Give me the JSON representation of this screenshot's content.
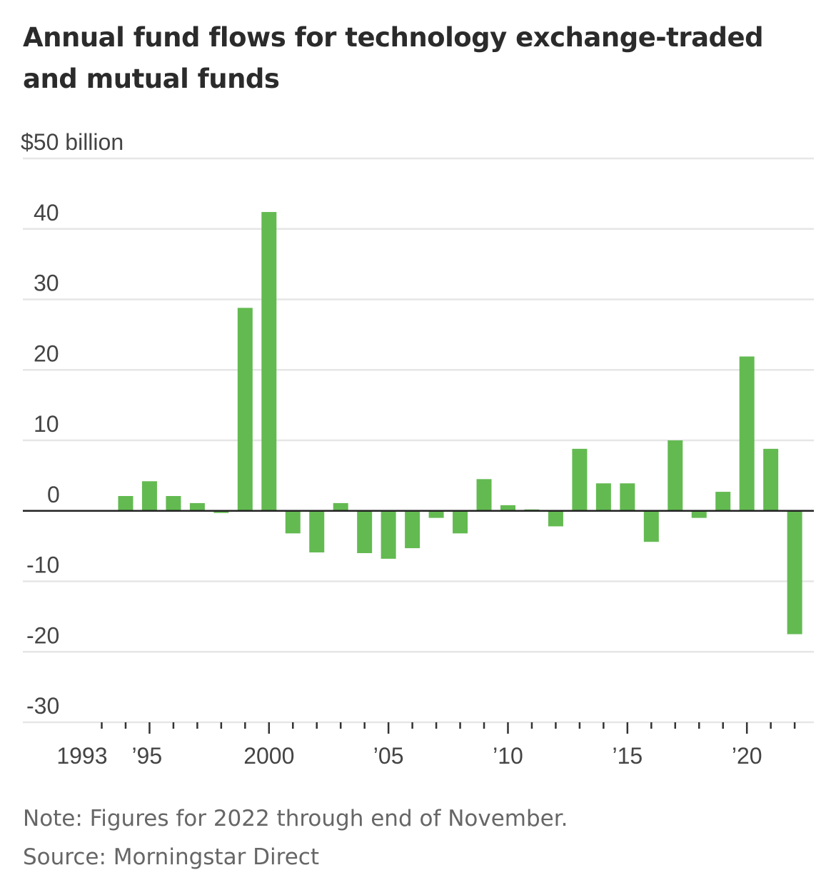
{
  "title": "Annual fund flows for technology exchange-traded and mutual funds",
  "note": "Note: Figures for 2022 through end of November.",
  "source": "Source: Morningstar Direct",
  "chart_data": {
    "type": "bar",
    "unit_label": "$50 billion",
    "ylim": [
      -30,
      50
    ],
    "yticks": [
      -30,
      -20,
      -10,
      0,
      10,
      20,
      30,
      40,
      50
    ],
    "ytick_labels": [
      "-30",
      "-20",
      "-10",
      "0",
      "10",
      "20",
      "30",
      "40",
      "$50 billion"
    ],
    "xlim": [
      1993,
      2022
    ],
    "xtick_labels": [
      {
        "year": 1993,
        "label": "1993"
      },
      {
        "year": 1995,
        "label": "’95"
      },
      {
        "year": 2000,
        "label": "2000"
      },
      {
        "year": 2005,
        "label": "’05"
      },
      {
        "year": 2010,
        "label": "’10"
      },
      {
        "year": 2015,
        "label": "’15"
      },
      {
        "year": 2020,
        "label": "’20"
      }
    ],
    "years": [
      1994,
      1995,
      1996,
      1997,
      1998,
      1999,
      2000,
      2001,
      2002,
      2003,
      2004,
      2005,
      2006,
      2007,
      2008,
      2009,
      2010,
      2011,
      2012,
      2013,
      2014,
      2015,
      2016,
      2017,
      2018,
      2019,
      2020,
      2021,
      2022
    ],
    "values": [
      2.1,
      4.2,
      2.1,
      1.1,
      -0.3,
      28.8,
      42.4,
      -3.2,
      -5.9,
      1.1,
      -6.0,
      -6.8,
      -5.3,
      -1.0,
      -3.2,
      4.5,
      0.8,
      0.2,
      -2.2,
      8.8,
      3.9,
      3.9,
      -4.4,
      10.0,
      -1.0,
      2.7,
      21.9,
      8.8,
      -17.5
    ],
    "bar_color": "#63ba51",
    "grid": true,
    "gridline_color": "#e6e6e6",
    "zero_line_color": "#222222"
  }
}
